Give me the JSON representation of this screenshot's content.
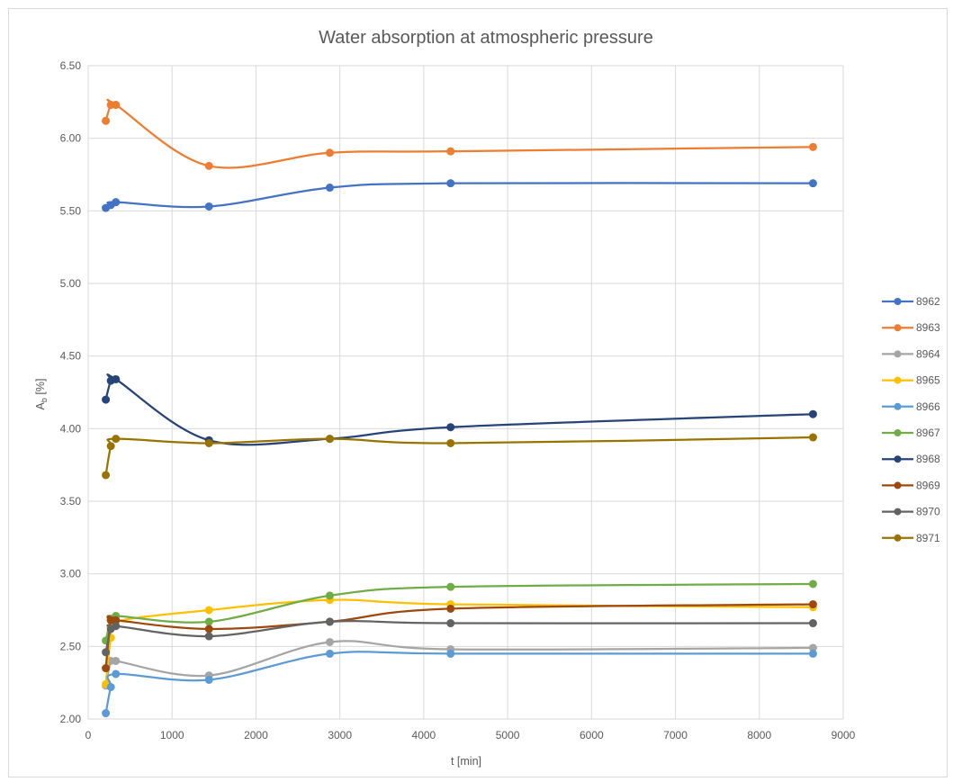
{
  "chart_data": {
    "type": "line",
    "title": "Water absorption at atmospheric pressure",
    "xlabel": "t [min]",
    "ylabel_main": "A",
    "ylabel_sub": "b",
    "ylabel_rest": " [%]",
    "xlim": [
      0,
      9000
    ],
    "ylim": [
      2.0,
      6.5
    ],
    "x_ticks": [
      0,
      1000,
      2000,
      3000,
      4000,
      5000,
      6000,
      7000,
      8000,
      9000
    ],
    "y_ticks": [
      "2.00",
      "2.50",
      "3.00",
      "3.50",
      "4.00",
      "4.50",
      "5.00",
      "5.50",
      "6.00",
      "6.50"
    ],
    "grid": true,
    "smooth": true,
    "legend_position": "right",
    "x": [
      210,
      270,
      330,
      1440,
      2880,
      4320,
      8640
    ],
    "series": [
      {
        "name": "8962",
        "color": "#4472C4",
        "values": [
          5.52,
          5.54,
          5.56,
          5.53,
          5.66,
          5.69,
          5.69
        ]
      },
      {
        "name": "8963",
        "color": "#ED7D31",
        "values": [
          6.12,
          6.23,
          6.23,
          5.81,
          5.9,
          5.91,
          5.94
        ]
      },
      {
        "name": "8964",
        "color": "#A5A5A5",
        "values": [
          2.23,
          2.4,
          2.4,
          2.3,
          2.53,
          2.48,
          2.49
        ]
      },
      {
        "name": "8965",
        "color": "#FFC000",
        "values": [
          2.24,
          2.56,
          2.67,
          2.75,
          2.82,
          2.79,
          2.77
        ]
      },
      {
        "name": "8966",
        "color": "#5B9BD5",
        "values": [
          2.04,
          2.22,
          2.31,
          2.27,
          2.45,
          2.45,
          2.45
        ]
      },
      {
        "name": "8967",
        "color": "#70AD47",
        "values": [
          2.54,
          2.68,
          2.71,
          2.67,
          2.85,
          2.91,
          2.93
        ]
      },
      {
        "name": "8968",
        "color": "#264478",
        "values": [
          4.2,
          4.33,
          4.34,
          3.92,
          3.93,
          4.01,
          4.1
        ]
      },
      {
        "name": "8969",
        "color": "#9E480E",
        "values": [
          2.35,
          2.68,
          2.68,
          2.62,
          2.67,
          2.76,
          2.79
        ]
      },
      {
        "name": "8970",
        "color": "#636363",
        "values": [
          2.46,
          2.62,
          2.64,
          2.57,
          2.67,
          2.66,
          2.66
        ]
      },
      {
        "name": "8971",
        "color": "#997300",
        "values": [
          3.68,
          3.88,
          3.93,
          3.9,
          3.93,
          3.9,
          3.94
        ]
      }
    ]
  }
}
